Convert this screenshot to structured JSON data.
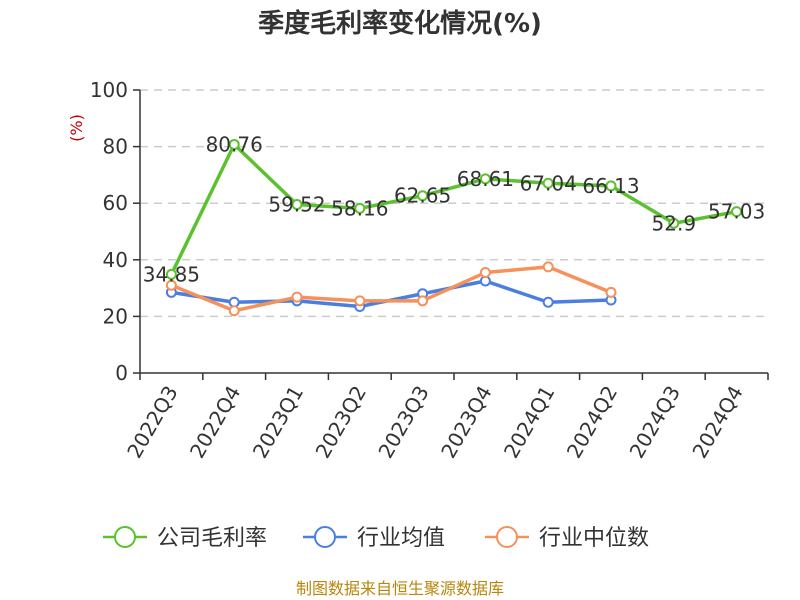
{
  "chart_data": {
    "type": "line",
    "title": "季度毛利率变化情况(%)",
    "ylabel": "(%)",
    "xlabel": "",
    "categories": [
      "2022Q3",
      "2022Q4",
      "2023Q1",
      "2023Q2",
      "2023Q3",
      "2023Q4",
      "2024Q1",
      "2024Q2",
      "2024Q3",
      "2024Q4"
    ],
    "ylim": [
      0,
      100
    ],
    "yticks": [
      0,
      20,
      40,
      60,
      80,
      100
    ],
    "grid": true,
    "legend_position": "bottom",
    "series": [
      {
        "name": "公司毛利率",
        "color": "#5cc12f",
        "values": [
          34.85,
          80.76,
          59.52,
          58.16,
          62.65,
          68.61,
          67.04,
          66.13,
          52.9,
          57.03
        ],
        "labels": [
          "34.85",
          "80.76",
          "59.52",
          "58.16",
          "62.65",
          "68.61",
          "67.04",
          "66.13",
          "52.9",
          "57.03"
        ]
      },
      {
        "name": "行业均值",
        "color": "#4a7fe0",
        "values": [
          28.5,
          25.0,
          25.5,
          23.5,
          28.0,
          32.5,
          25.0,
          25.8,
          null,
          null
        ]
      },
      {
        "name": "行业中位数",
        "color": "#f5915b",
        "values": [
          31.0,
          22.0,
          26.8,
          25.5,
          25.5,
          35.5,
          37.5,
          28.5,
          null,
          null
        ]
      }
    ]
  },
  "footer": {
    "source": "制图数据来自恒生聚源数据库"
  }
}
